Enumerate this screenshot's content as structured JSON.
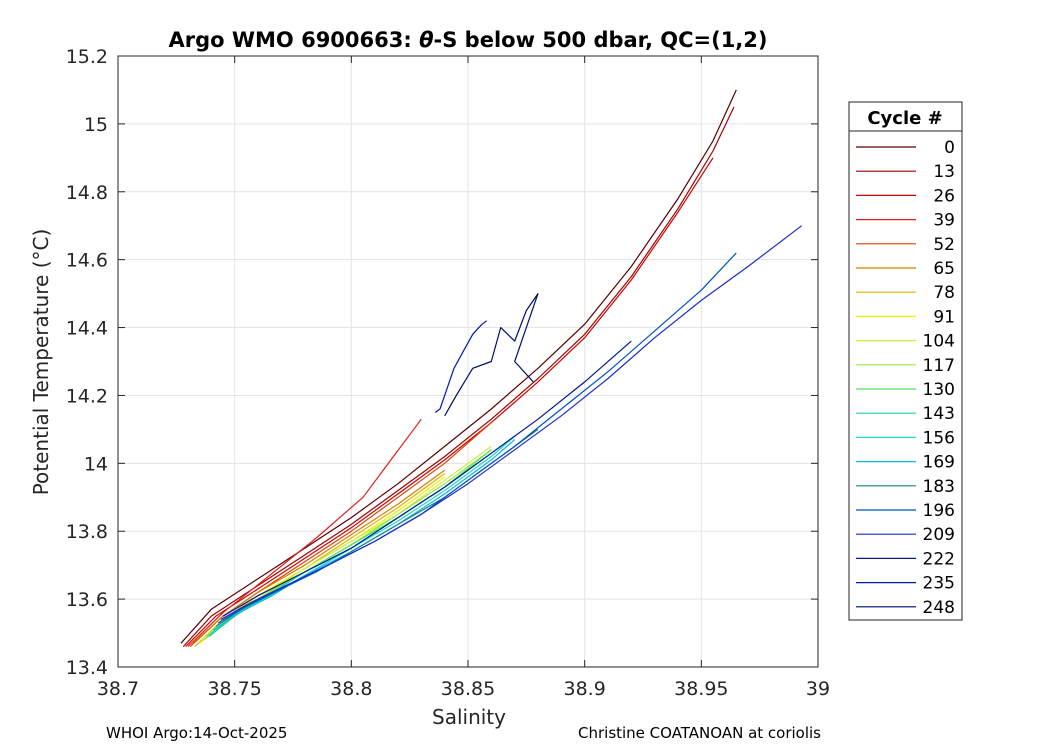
{
  "chart_data": {
    "type": "line",
    "title_prefix": "Argo WMO 6900663: ",
    "title_symbol": "θ",
    "title_suffix": "-S below 500 dbar,  QC=(1,2)",
    "xlabel": "Salinity",
    "ylabel": "Potential Temperature (°C)",
    "xlim": [
      38.7,
      39.0
    ],
    "ylim": [
      13.4,
      15.2
    ],
    "xticks": [
      38.7,
      38.75,
      38.8,
      38.85,
      38.9,
      38.95,
      39.0
    ],
    "xtick_labels": [
      "38.7",
      "38.75",
      "38.8",
      "38.85",
      "38.9",
      "38.95",
      "39"
    ],
    "yticks": [
      13.4,
      13.6,
      13.8,
      14.0,
      14.2,
      14.4,
      14.6,
      14.8,
      15.0,
      15.2
    ],
    "ytick_labels": [
      "13.4",
      "13.6",
      "13.8",
      "14",
      "14.2",
      "14.4",
      "14.6",
      "14.8",
      "15",
      "15.2"
    ],
    "grid": true,
    "legend": {
      "title": "Cycle #",
      "position": "outside-right",
      "entries": [
        "0",
        "13",
        "26",
        "39",
        "52",
        "65",
        "78",
        "91",
        "104",
        "117",
        "130",
        "143",
        "156",
        "169",
        "183",
        "196",
        "209",
        "222",
        "235",
        "248"
      ],
      "colors": [
        "#5a0000",
        "#a00000",
        "#d00000",
        "#e02020",
        "#e04000",
        "#d08000",
        "#e0b000",
        "#f0f000",
        "#c8f040",
        "#90e840",
        "#50e060",
        "#20d0a0",
        "#20d8d0",
        "#10b8d8",
        "#108880",
        "#0050c0",
        "#1a2cd0",
        "#001890",
        "#0018b0",
        "#000c70"
      ]
    },
    "series": [
      {
        "name": "0",
        "x": [
          38.727,
          38.74,
          38.76,
          38.78,
          38.8,
          38.82,
          38.84,
          38.86,
          38.88,
          38.9,
          38.92,
          38.94,
          38.955,
          38.965
        ],
        "y": [
          13.47,
          13.57,
          13.66,
          13.75,
          13.84,
          13.94,
          14.05,
          14.16,
          14.28,
          14.41,
          14.58,
          14.78,
          14.95,
          15.1
        ]
      },
      {
        "name": "13",
        "x": [
          38.728,
          38.74,
          38.76,
          38.78,
          38.8,
          38.82,
          38.84,
          38.86,
          38.88,
          38.9,
          38.92,
          38.94,
          38.955,
          38.964
        ],
        "y": [
          13.46,
          13.55,
          13.64,
          13.73,
          13.82,
          13.92,
          14.02,
          14.13,
          14.25,
          14.38,
          14.55,
          14.75,
          14.92,
          15.05
        ]
      },
      {
        "name": "26",
        "x": [
          38.729,
          38.742,
          38.76,
          38.78,
          38.8,
          38.82,
          38.84,
          38.86,
          38.88,
          38.9,
          38.92,
          38.94,
          38.955
        ],
        "y": [
          13.46,
          13.55,
          13.63,
          13.72,
          13.81,
          13.91,
          14.01,
          14.12,
          14.24,
          14.37,
          14.54,
          14.74,
          14.9
        ]
      },
      {
        "name": "39",
        "x": [
          38.73,
          38.745,
          38.765,
          38.785,
          38.805,
          38.83
        ],
        "y": [
          13.46,
          13.56,
          13.67,
          13.78,
          13.9,
          14.13
        ]
      },
      {
        "name": "52",
        "x": [
          38.731,
          38.745,
          38.76,
          38.78,
          38.8,
          38.82,
          38.84,
          38.86
        ],
        "y": [
          13.46,
          13.55,
          13.62,
          13.71,
          13.8,
          13.9,
          14.0,
          14.12
        ]
      },
      {
        "name": "65",
        "x": [
          38.732,
          38.745,
          38.76,
          38.78,
          38.8,
          38.82,
          38.84
        ],
        "y": [
          13.47,
          13.55,
          13.62,
          13.7,
          13.79,
          13.88,
          13.98
        ]
      },
      {
        "name": "78",
        "x": [
          38.733,
          38.745,
          38.76,
          38.78,
          38.8,
          38.82,
          38.84
        ],
        "y": [
          13.46,
          13.54,
          13.61,
          13.69,
          13.78,
          13.87,
          13.97
        ]
      },
      {
        "name": "91",
        "x": [
          38.735,
          38.747,
          38.76,
          38.78,
          38.8,
          38.82,
          38.84
        ],
        "y": [
          13.47,
          13.54,
          13.61,
          13.69,
          13.77,
          13.86,
          13.96
        ]
      },
      {
        "name": "104",
        "x": [
          38.736,
          38.748,
          38.762,
          38.78,
          38.8,
          38.82,
          38.84,
          38.86
        ],
        "y": [
          13.48,
          13.55,
          13.61,
          13.69,
          13.77,
          13.85,
          13.95,
          14.05
        ]
      },
      {
        "name": "117",
        "x": [
          38.737,
          38.749,
          38.762,
          38.78,
          38.8,
          38.82,
          38.84,
          38.86
        ],
        "y": [
          13.48,
          13.55,
          13.61,
          13.68,
          13.76,
          13.85,
          13.94,
          14.04
        ]
      },
      {
        "name": "130",
        "x": [
          38.738,
          38.75,
          38.763,
          38.78,
          38.8,
          38.82,
          38.84,
          38.86
        ],
        "y": [
          13.49,
          13.55,
          13.61,
          13.68,
          13.76,
          13.84,
          13.93,
          14.04
        ]
      },
      {
        "name": "143",
        "x": [
          38.739,
          38.75,
          38.764,
          38.78,
          38.8,
          38.82,
          38.84,
          38.86,
          38.87
        ],
        "y": [
          13.49,
          13.55,
          13.61,
          13.68,
          13.75,
          13.84,
          13.93,
          14.03,
          14.08
        ]
      },
      {
        "name": "156",
        "x": [
          38.74,
          38.751,
          38.765,
          38.78,
          38.8,
          38.82,
          38.84,
          38.86,
          38.87
        ],
        "y": [
          13.5,
          13.56,
          13.61,
          13.67,
          13.75,
          13.83,
          13.92,
          14.02,
          14.08
        ]
      },
      {
        "name": "169",
        "x": [
          38.741,
          38.752,
          38.766,
          38.78,
          38.8,
          38.82,
          38.84,
          38.86,
          38.87
        ],
        "y": [
          13.51,
          13.56,
          13.61,
          13.67,
          13.74,
          13.82,
          13.91,
          14.01,
          14.07
        ]
      },
      {
        "name": "183",
        "x": [
          38.742,
          38.753,
          38.767,
          38.785,
          38.8,
          38.82,
          38.84,
          38.86,
          38.88
        ],
        "y": [
          13.52,
          13.57,
          13.62,
          13.68,
          13.74,
          13.82,
          13.9,
          14.0,
          14.1
        ]
      },
      {
        "name": "196",
        "x": [
          38.743,
          38.755,
          38.77,
          38.79,
          38.81,
          38.83,
          38.85,
          38.87,
          38.89,
          38.91,
          38.93,
          38.95,
          38.965
        ],
        "y": [
          13.53,
          13.58,
          13.63,
          13.7,
          13.77,
          13.85,
          13.95,
          14.05,
          14.16,
          14.27,
          14.39,
          14.51,
          14.62
        ]
      },
      {
        "name": "209",
        "x": [
          38.744,
          38.757,
          38.772,
          38.79,
          38.81,
          38.83,
          38.85,
          38.87,
          38.89,
          38.91,
          38.93,
          38.95,
          38.97,
          38.993
        ],
        "y": [
          13.54,
          13.59,
          13.64,
          13.7,
          13.77,
          13.85,
          13.94,
          14.04,
          14.14,
          14.25,
          14.37,
          14.48,
          14.58,
          14.7
        ]
      },
      {
        "name": "222",
        "x": [
          38.745,
          38.76,
          38.78,
          38.8,
          38.82,
          38.84,
          38.86,
          38.88,
          38.9,
          38.92
        ],
        "y": [
          13.55,
          13.61,
          13.68,
          13.75,
          13.84,
          13.93,
          14.03,
          14.13,
          14.24,
          14.36
        ]
      },
      {
        "name": "235",
        "x": [
          38.836,
          38.838,
          38.841,
          38.844,
          38.848,
          38.852,
          38.856,
          38.858
        ],
        "y": [
          14.15,
          14.16,
          14.22,
          14.28,
          14.33,
          14.38,
          14.41,
          14.42
        ]
      },
      {
        "name": "248",
        "x": [
          38.84,
          38.845,
          38.852,
          38.86,
          38.864,
          38.87,
          38.875,
          38.88,
          38.874,
          38.87,
          38.878
        ],
        "y": [
          14.14,
          14.2,
          14.28,
          14.3,
          14.4,
          14.36,
          14.45,
          14.5,
          14.38,
          14.3,
          14.24
        ]
      }
    ]
  },
  "footer": {
    "left": "WHOI Argo:14-Oct-2025",
    "right": "Christine COATANOAN at coriolis"
  }
}
